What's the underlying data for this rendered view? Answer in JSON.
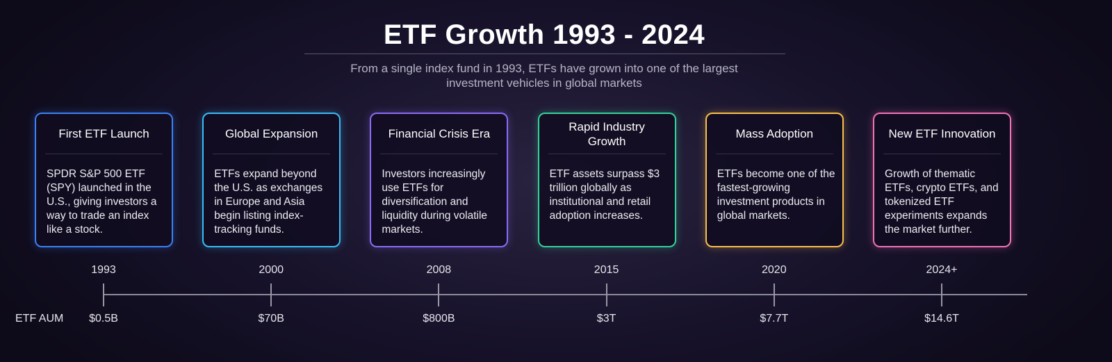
{
  "title": "ETF Growth 1993 - 2024",
  "subtitle_lines": [
    "From a single index fund in 1993, ETFs have grown into one of the largest",
    "investment vehicles in global markets"
  ],
  "aum_label": "ETF AUM",
  "milestones": [
    {
      "title": "First ETF Launch",
      "body": "SPDR S&P 500 ETF (SPY) launched in the U.S., giving investors a way to trade an index like a stock.",
      "year": "1993",
      "aum": "$0.5B",
      "color": "#3b82f6"
    },
    {
      "title": "Global Expansion",
      "body": "ETFs expand beyond the U.S. as exchanges in Europe and Asia begin listing index-tracking funds.",
      "year": "2000",
      "aum": "$70B",
      "color": "#38bdf8"
    },
    {
      "title": "Financial Crisis Era",
      "body": "Investors increasingly use ETFs for diversification and liquidity during volatile markets.",
      "year": "2008",
      "aum": "$800B",
      "color": "#8b6cf6"
    },
    {
      "title": "Rapid Industry Growth",
      "body": "ETF assets surpass $3 trillion globally as institutional and retail adoption increases.",
      "year": "2015",
      "aum": "$3T",
      "color": "#34d399"
    },
    {
      "title": "Mass Adoption",
      "body": "ETFs become one of the fastest-growing investment products in global markets.",
      "year": "2020",
      "aum": "$7.7T",
      "color": "#fbbf4a"
    },
    {
      "title": "New ETF Innovation",
      "body": "Growth of thematic ETFs, crypto ETFs, and tokenized ETF experiments expands the market further.",
      "year": "2024+",
      "aum": "$14.6T",
      "color": "#f472b6"
    }
  ]
}
